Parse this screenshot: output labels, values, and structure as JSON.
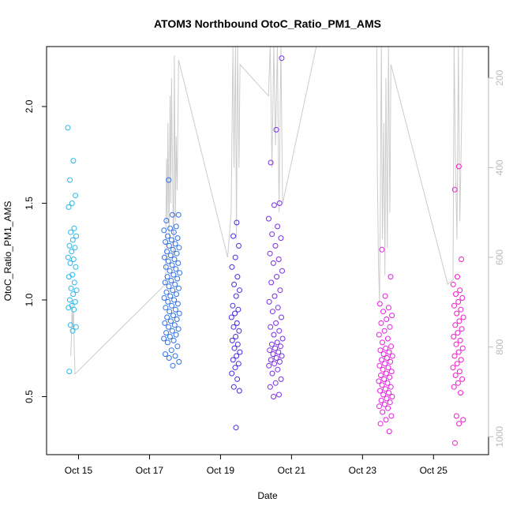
{
  "chart_data": {
    "type": "scatter",
    "title": "ATOM3 Northbound OtoC_Ratio_PM1_AMS",
    "xlabel": "Date",
    "ylabel": "OtoC_Ratio_PM1_AMS",
    "x_unit": "days in October",
    "xlim": [
      14.1,
      26.55
    ],
    "ylim": [
      0.2,
      2.31
    ],
    "x_ticks": [
      15,
      17,
      19,
      21,
      23,
      25
    ],
    "x_tick_labels": [
      "Oct 15",
      "Oct 17",
      "Oct 19",
      "Oct 21",
      "Oct 23",
      "Oct 25"
    ],
    "y_ticks": [
      0.5,
      1.0,
      1.5,
      2.0
    ],
    "y_tick_labels": [
      "0.5",
      "1.0",
      "1.5",
      "2.0"
    ],
    "right_axis": {
      "label": "",
      "ticks": [
        200,
        400,
        600,
        800,
        1000
      ],
      "tick_labels": [
        "200",
        "400",
        "600",
        "800",
        "1000"
      ],
      "direction": "reversed",
      "range": [
        1040,
        130
      ]
    },
    "grid": false,
    "legend": "none",
    "series_colors": [
      "#2ab7ea",
      "#2f6fe6",
      "#4a2be0",
      "#7a2ee6",
      "#e61fe0",
      "#f21cc8"
    ],
    "line_color": "#cccccc",
    "flights": [
      {
        "x_range": [
          14.7,
          14.95
        ],
        "color": "#2ab7ea",
        "y": [
          1.89,
          1.72,
          1.62,
          1.54,
          1.5,
          1.48,
          1.37,
          1.35,
          1.33,
          1.31,
          1.28,
          1.27,
          1.25,
          1.22,
          1.21,
          1.19,
          1.17,
          1.13,
          1.12,
          1.09,
          1.06,
          1.05,
          1.03,
          1.0,
          0.99,
          0.97,
          0.96,
          0.95,
          0.87,
          0.86,
          0.84,
          0.63
        ]
      },
      {
        "x_range": [
          17.4,
          17.85
        ],
        "color": "#2f6fe6",
        "y": [
          1.62,
          1.44,
          1.44,
          1.41,
          1.38,
          1.37,
          1.36,
          1.35,
          1.33,
          1.32,
          1.31,
          1.3,
          1.29,
          1.28,
          1.27,
          1.26,
          1.25,
          1.24,
          1.23,
          1.22,
          1.21,
          1.2,
          1.19,
          1.18,
          1.17,
          1.16,
          1.15,
          1.14,
          1.13,
          1.12,
          1.11,
          1.1,
          1.09,
          1.08,
          1.07,
          1.06,
          1.05,
          1.04,
          1.03,
          1.02,
          1.01,
          1.0,
          0.99,
          0.98,
          0.97,
          0.96,
          0.95,
          0.94,
          0.93,
          0.92,
          0.91,
          0.9,
          0.89,
          0.88,
          0.87,
          0.86,
          0.85,
          0.84,
          0.83,
          0.82,
          0.81,
          0.8,
          0.79,
          0.78,
          0.76,
          0.74,
          0.72,
          0.71,
          0.7,
          0.68,
          0.66
        ]
      },
      {
        "x_range": [
          19.3,
          19.55
        ],
        "color": "#4a2be0",
        "y": [
          1.4,
          1.33,
          1.28,
          1.22,
          1.17,
          1.12,
          1.08,
          1.05,
          1.02,
          0.97,
          0.95,
          0.93,
          0.91,
          0.88,
          0.86,
          0.84,
          0.81,
          0.79,
          0.77,
          0.75,
          0.73,
          0.71,
          0.69,
          0.67,
          0.65,
          0.62,
          0.59,
          0.55,
          0.53,
          0.34
        ]
      },
      {
        "x_range": [
          20.35,
          20.75
        ],
        "color": "#7a2ee6",
        "y": [
          2.25,
          1.88,
          1.71,
          1.5,
          1.49,
          1.42,
          1.38,
          1.34,
          1.32,
          1.28,
          1.24,
          1.21,
          1.19,
          1.15,
          1.12,
          1.09,
          1.05,
          1.02,
          0.99,
          0.96,
          0.94,
          0.91,
          0.88,
          0.86,
          0.84,
          0.82,
          0.8,
          0.78,
          0.77,
          0.76,
          0.75,
          0.74,
          0.73,
          0.72,
          0.71,
          0.7,
          0.69,
          0.68,
          0.67,
          0.66,
          0.64,
          0.62,
          0.59,
          0.57,
          0.55,
          0.51,
          0.5
        ]
      },
      {
        "x_range": [
          23.45,
          23.85
        ],
        "color": "#e61fe0",
        "y": [
          1.26,
          1.12,
          1.02,
          0.98,
          0.96,
          0.94,
          0.92,
          0.9,
          0.88,
          0.86,
          0.84,
          0.82,
          0.8,
          0.78,
          0.76,
          0.75,
          0.74,
          0.73,
          0.72,
          0.71,
          0.7,
          0.69,
          0.68,
          0.67,
          0.66,
          0.65,
          0.64,
          0.63,
          0.62,
          0.61,
          0.6,
          0.59,
          0.58,
          0.57,
          0.56,
          0.55,
          0.54,
          0.53,
          0.52,
          0.51,
          0.5,
          0.49,
          0.48,
          0.47,
          0.46,
          0.45,
          0.44,
          0.42,
          0.4,
          0.38,
          0.36,
          0.32
        ]
      },
      {
        "x_range": [
          25.55,
          25.85
        ],
        "color": "#f21cc8",
        "y": [
          1.69,
          1.57,
          1.21,
          1.12,
          1.08,
          1.05,
          1.03,
          1.01,
          0.99,
          0.97,
          0.95,
          0.93,
          0.91,
          0.89,
          0.87,
          0.85,
          0.83,
          0.81,
          0.79,
          0.77,
          0.75,
          0.73,
          0.71,
          0.69,
          0.67,
          0.65,
          0.63,
          0.61,
          0.59,
          0.57,
          0.55,
          0.52,
          0.4,
          0.38,
          0.36,
          0.26
        ]
      }
    ],
    "altitude_line": [
      [
        14.78,
        820
      ],
      [
        14.8,
        780
      ],
      [
        14.82,
        700
      ],
      [
        14.84,
        760
      ],
      [
        14.86,
        720
      ],
      [
        14.88,
        800
      ],
      [
        14.9,
        860
      ],
      [
        17.45,
        660
      ],
      [
        17.48,
        380
      ],
      [
        17.5,
        520
      ],
      [
        17.52,
        300
      ],
      [
        17.55,
        560
      ],
      [
        17.58,
        240
      ],
      [
        17.6,
        480
      ],
      [
        17.62,
        200
      ],
      [
        17.65,
        420
      ],
      [
        17.68,
        600
      ],
      [
        17.7,
        150
      ],
      [
        17.73,
        520
      ],
      [
        17.75,
        330
      ],
      [
        17.78,
        450
      ],
      [
        17.82,
        160
      ],
      [
        19.2,
        600
      ],
      [
        19.3,
        500
      ],
      [
        19.35,
        130
      ],
      [
        19.38,
        400
      ],
      [
        19.42,
        130
      ],
      [
        19.45,
        560
      ],
      [
        19.48,
        130
      ],
      [
        19.52,
        400
      ],
      [
        19.55,
        170
      ],
      [
        20.35,
        240
      ],
      [
        20.4,
        130
      ],
      [
        20.45,
        400
      ],
      [
        20.5,
        130
      ],
      [
        20.55,
        350
      ],
      [
        20.6,
        130
      ],
      [
        20.65,
        500
      ],
      [
        20.7,
        130
      ],
      [
        20.75,
        480
      ],
      [
        21.7,
        130
      ],
      [
        23.4,
        130
      ],
      [
        23.42,
        420
      ],
      [
        23.45,
        620
      ],
      [
        23.48,
        700
      ],
      [
        23.5,
        500
      ],
      [
        23.53,
        130
      ],
      [
        23.56,
        560
      ],
      [
        23.6,
        300
      ],
      [
        23.63,
        640
      ],
      [
        23.66,
        200
      ],
      [
        23.7,
        580
      ],
      [
        23.73,
        130
      ],
      [
        23.77,
        500
      ],
      [
        23.8,
        170
      ],
      [
        25.4,
        660
      ],
      [
        25.55,
        650
      ],
      [
        25.58,
        130
      ],
      [
        25.62,
        400
      ],
      [
        25.66,
        560
      ],
      [
        25.7,
        130
      ],
      [
        25.74,
        520
      ],
      [
        25.78,
        350
      ],
      [
        25.82,
        130
      ]
    ]
  }
}
